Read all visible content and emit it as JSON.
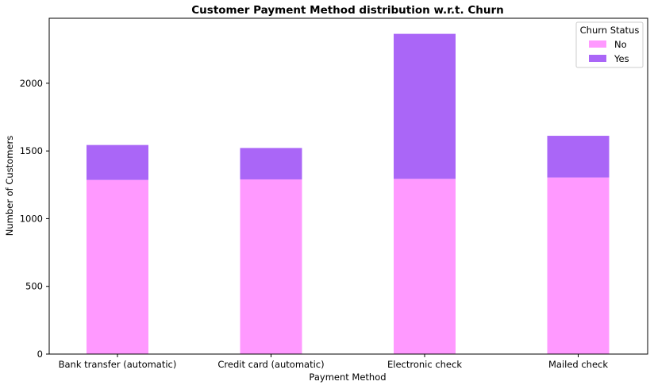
{
  "chart_data": {
    "type": "bar",
    "stacked": true,
    "title": "Customer Payment Method distribution w.r.t. Churn",
    "xlabel": "Payment Method",
    "ylabel": "Number of Customers",
    "categories": [
      "Bank transfer (automatic)",
      "Credit card (automatic)",
      "Electronic check",
      "Mailed check"
    ],
    "series": [
      {
        "name": "No",
        "color": "#ff99ff",
        "values": [
          1286,
          1290,
          1294,
          1304
        ]
      },
      {
        "name": "Yes",
        "color": "#aa66f7",
        "values": [
          258,
          232,
          1071,
          308
        ]
      }
    ],
    "ylim": [
      0,
      2480
    ],
    "yticks": [
      0,
      500,
      1000,
      1500,
      2000
    ],
    "grid": false,
    "legend": {
      "title": "Churn Status",
      "placement": "top-right"
    }
  }
}
